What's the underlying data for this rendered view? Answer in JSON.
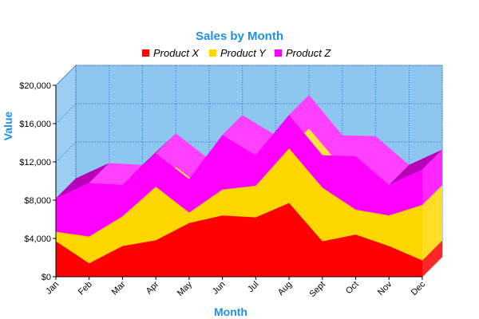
{
  "chart_data": {
    "type": "area",
    "stacked": true,
    "style": "3d",
    "title": "Sales by Month",
    "xlabel": "Month",
    "ylabel": "Value",
    "categories": [
      "Jan",
      "Feb",
      "Mar",
      "Apr",
      "May",
      "Jun",
      "Jul",
      "Aug",
      "Sept",
      "Oct",
      "Nov",
      "Dec"
    ],
    "series": [
      {
        "name": "Product X",
        "color": "#ff0000",
        "values": [
          3700,
          1400,
          3200,
          3800,
          5600,
          6400,
          6200,
          7700,
          3700,
          4400,
          3200,
          1700
        ]
      },
      {
        "name": "Product Y",
        "color": "#ffd700",
        "values": [
          1000,
          2800,
          3100,
          5600,
          1100,
          2700,
          3300,
          5700,
          5600,
          2600,
          3200,
          5800
        ]
      },
      {
        "name": "Product Z",
        "color": "#ff00ff",
        "values": [
          3500,
          5600,
          3300,
          3500,
          3500,
          5700,
          3200,
          3500,
          3400,
          5600,
          3200,
          3700
        ]
      }
    ],
    "ylim": [
      0,
      20000
    ],
    "yticks": [
      0,
      4000,
      8000,
      12000,
      16000,
      20000
    ],
    "ytick_labels": [
      "$0",
      "$4,000",
      "$8,000",
      "$12,000",
      "$16,000",
      "$20,000"
    ],
    "grid": true,
    "legend_position": "top",
    "background_color": "#8ec6f0",
    "grid_color": "#1f6fd0"
  }
}
